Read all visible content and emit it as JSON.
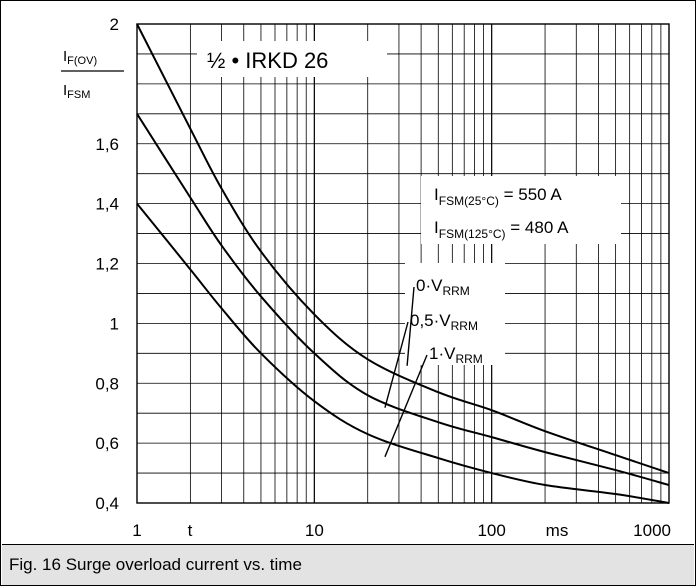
{
  "caption": "Fig. 16 Surge overload current vs. time",
  "chart_data": {
    "type": "line",
    "title": "½ • IRKD 26",
    "ylabel": {
      "numerator": "I",
      "numerator_sub": "F(OV)",
      "denominator": "I",
      "denominator_sub": "FSM"
    },
    "xlabel": "t",
    "x_unit": "ms",
    "x_scale": "log",
    "xlim": [
      1,
      1000
    ],
    "ylim": [
      0.4,
      2.0
    ],
    "y_ticks": [
      {
        "value": 0.4,
        "label": "0,4"
      },
      {
        "value": 0.6,
        "label": "0,6"
      },
      {
        "value": 0.8,
        "label": "0,8"
      },
      {
        "value": 1.0,
        "label": "1"
      },
      {
        "value": 1.2,
        "label": "1,2"
      },
      {
        "value": 1.4,
        "label": "1,4"
      },
      {
        "value": 1.6,
        "label": "1,6"
      },
      {
        "value": 2.0,
        "label": "2"
      }
    ],
    "x_ticks": [
      {
        "value": 1,
        "label": "1"
      },
      {
        "value": 10,
        "label": "10"
      },
      {
        "value": 100,
        "label": "100"
      },
      {
        "value": 1000,
        "label": "1000"
      }
    ],
    "grid": true,
    "annotations": [
      {
        "main": "I",
        "sub": "FSM(25°C)",
        "rest": " = 550 A"
      },
      {
        "main": "I",
        "sub": "FSM(125°C)",
        "rest": " = 480 A"
      }
    ],
    "series": [
      {
        "name": "0·V",
        "name_sub": "RRM",
        "x": [
          1,
          2,
          3,
          5,
          10,
          20,
          50,
          100,
          200,
          500,
          1000
        ],
        "y": [
          2.0,
          1.65,
          1.45,
          1.24,
          1.03,
          0.88,
          0.77,
          0.71,
          0.64,
          0.56,
          0.5
        ]
      },
      {
        "name": "0,5·V",
        "name_sub": "RRM",
        "x": [
          1,
          2,
          3,
          5,
          10,
          20,
          50,
          100,
          200,
          500,
          1000
        ],
        "y": [
          1.7,
          1.42,
          1.26,
          1.09,
          0.9,
          0.76,
          0.67,
          0.62,
          0.57,
          0.51,
          0.46
        ]
      },
      {
        "name": "1·V",
        "name_sub": "RRM",
        "x": [
          1,
          2,
          3,
          5,
          10,
          20,
          50,
          100,
          200,
          500,
          1000
        ],
        "y": [
          1.4,
          1.18,
          1.05,
          0.9,
          0.74,
          0.63,
          0.55,
          0.5,
          0.46,
          0.43,
          0.4
        ]
      }
    ],
    "series_label_positions": [
      {
        "x": 40,
        "y": 0.905
      },
      {
        "x": 30,
        "y": 0.765
      },
      {
        "x": 30,
        "y": 0.601
      }
    ]
  }
}
